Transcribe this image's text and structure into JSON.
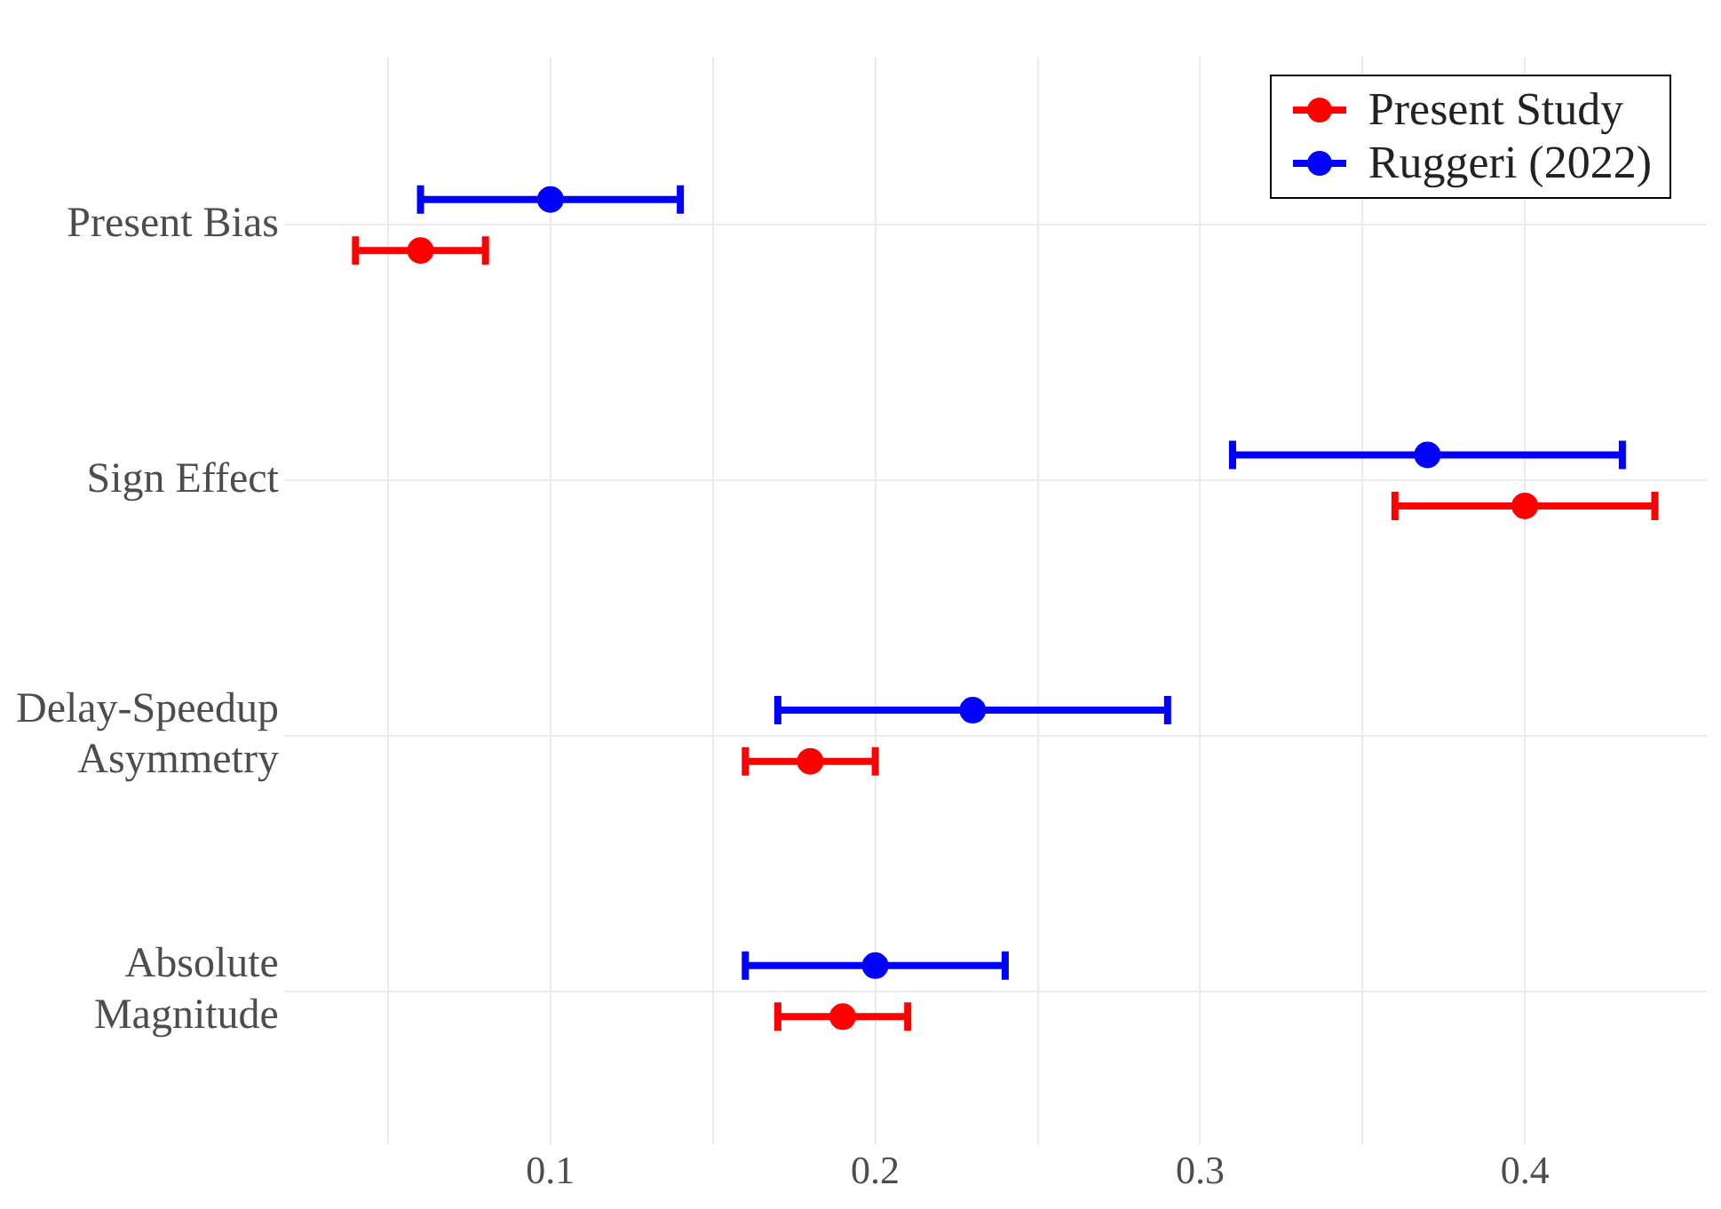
{
  "chart_data": {
    "type": "scatter",
    "orientation": "horizontal",
    "categories": [
      "Present Bias",
      "Sign Effect",
      "Delay-Speedup Asymmetry",
      "Absolute Magnitude"
    ],
    "series": [
      {
        "name": "Present Study",
        "color": "#ff0000",
        "values": [
          0.06,
          0.4,
          0.18,
          0.19
        ],
        "errors": [
          [
            0.04,
            0.08
          ],
          [
            0.36,
            0.44
          ],
          [
            0.16,
            0.2
          ],
          [
            0.17,
            0.21
          ]
        ]
      },
      {
        "name": "Ruggeri (2022)",
        "color": "#0000ff",
        "values": [
          0.1,
          0.37,
          0.23,
          0.2
        ],
        "errors": [
          [
            0.06,
            0.14
          ],
          [
            0.31,
            0.43
          ],
          [
            0.17,
            0.29
          ],
          [
            0.16,
            0.24
          ]
        ]
      }
    ],
    "xlim": [
      0.018,
      0.456
    ],
    "xticks": [
      {
        "value": 0.05,
        "label": null
      },
      0.1,
      {
        "value": 0.15,
        "label": null
      },
      0.2,
      {
        "value": 0.25,
        "label": null
      },
      0.3,
      {
        "value": 0.35,
        "label": null
      },
      0.4
    ],
    "grid": true,
    "legend": "top right",
    "marker": "circle"
  }
}
